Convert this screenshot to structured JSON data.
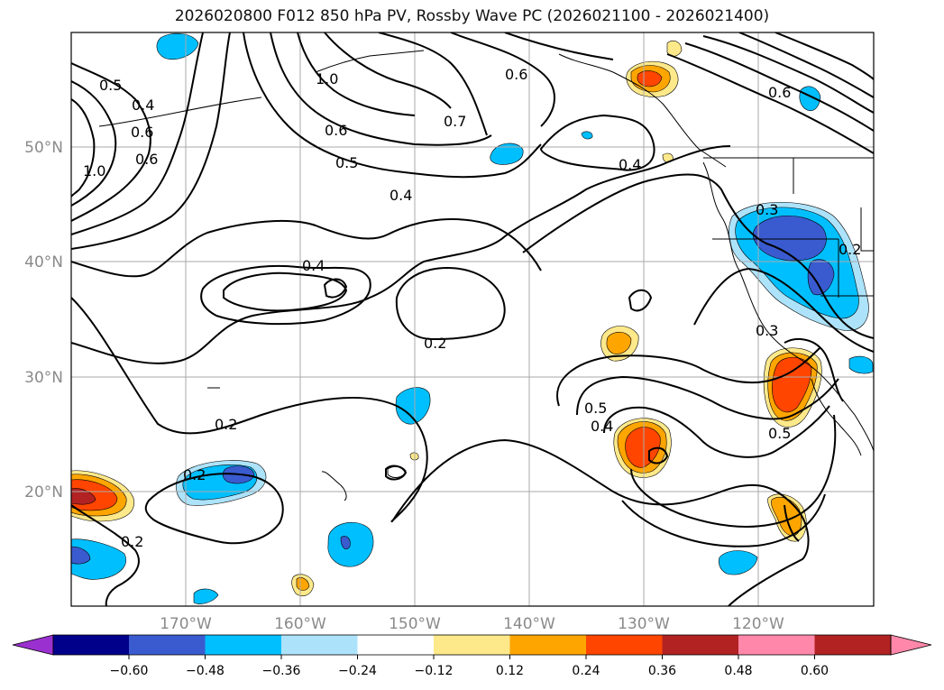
{
  "title": "2026020800 F012 850 hPa PV, Rossby Wave PC (2026021100 - 2026021400)",
  "map": {
    "lon_labels": [
      "170°W",
      "160°W",
      "150°W",
      "140°W",
      "130°W",
      "120°W"
    ],
    "lat_labels": [
      "50°N",
      "40°N",
      "30°N",
      "20°N"
    ],
    "contour_labels": [
      "0.5",
      "0.4",
      "0.6",
      "0.6",
      "1.0",
      "1.0",
      "0.6",
      "0.5",
      "0.4",
      "0.7",
      "0.6",
      "0.4",
      "0.4",
      "0.2",
      "0.2",
      "0.2",
      "0.2",
      "0.5",
      "0.4",
      "0.5",
      "0.3",
      "0.3",
      "0.6",
      "0.2"
    ]
  },
  "colorbar": {
    "colors": [
      "#9b30d0",
      "#00008b",
      "#3a5bcf",
      "#00bfff",
      "#ade3fa",
      "#ffffff",
      "#fee98a",
      "#ffa500",
      "#ff4500",
      "#b22222",
      "#ff88aa"
    ],
    "tick_labels": [
      "−0.60",
      "−0.48",
      "−0.36",
      "−0.24",
      "−0.12",
      "0.12",
      "0.24",
      "0.36",
      "0.48",
      "0.60"
    ]
  }
}
